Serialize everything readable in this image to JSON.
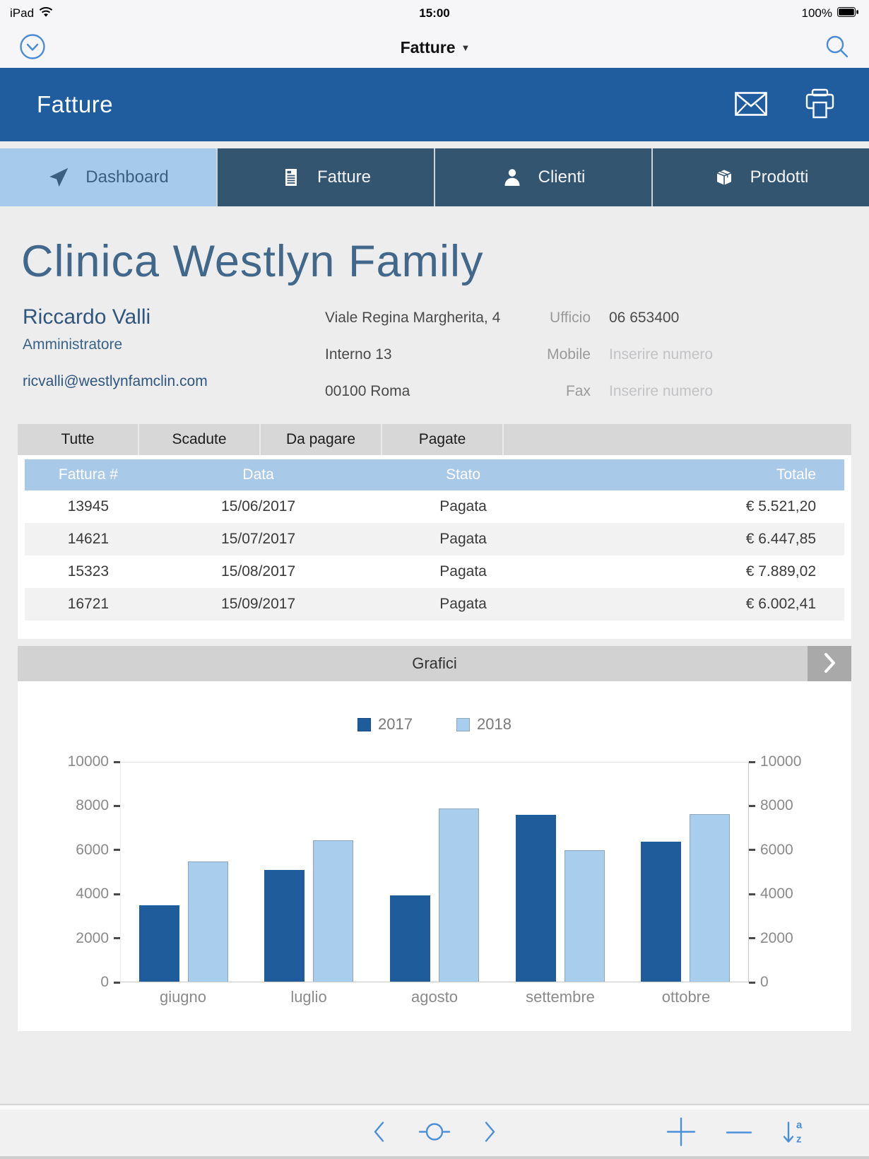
{
  "status_bar": {
    "carrier": "iPad",
    "time": "15:00",
    "battery_percent": "100%"
  },
  "nav_bar": {
    "title": "Fatture",
    "left_icon": "circle-chevron-down-icon",
    "right_icon": "search-icon"
  },
  "header": {
    "title": "Fatture",
    "icons": [
      "mail-icon",
      "print-icon"
    ]
  },
  "tabs": [
    {
      "id": "dashboard",
      "label": "Dashboard",
      "icon": "navigation-arrow-icon",
      "active": true
    },
    {
      "id": "fatture",
      "label": "Fatture",
      "icon": "invoice-icon",
      "active": false
    },
    {
      "id": "clienti",
      "label": "Clienti",
      "icon": "person-icon",
      "active": false
    },
    {
      "id": "prodotti",
      "label": "Prodotti",
      "icon": "box-icon",
      "active": false
    }
  ],
  "client": {
    "company": "Clinica Westlyn Family",
    "contact_name": "Riccardo Valli",
    "role": "Amministratore",
    "email": "ricvalli@westlynfamclin.com",
    "address_line1": "Viale Regina Margherita, 4",
    "address_line2": "Interno 13",
    "address_line3": "00100 Roma",
    "phones": [
      {
        "label": "Ufficio",
        "value": "06 653400",
        "placeholder": false
      },
      {
        "label": "Mobile",
        "value": "Inserire numero",
        "placeholder": true
      },
      {
        "label": "Fax",
        "value": "Inserire numero",
        "placeholder": true
      }
    ]
  },
  "filters": [
    "Tutte",
    "Scadute",
    "Da pagare",
    "Pagate"
  ],
  "invoice_table": {
    "columns": [
      "Fattura #",
      "Data",
      "Stato",
      "Totale"
    ],
    "rows": [
      [
        "13945",
        "15/06/2017",
        "Pagata",
        "€ 5.521,20"
      ],
      [
        "14621",
        "15/07/2017",
        "Pagata",
        "€ 6.447,85"
      ],
      [
        "15323",
        "15/08/2017",
        "Pagata",
        "€ 7.889,02"
      ],
      [
        "16721",
        "15/09/2017",
        "Pagata",
        "€ 6.002,41"
      ]
    ]
  },
  "charts_section": {
    "title": "Grafici"
  },
  "chart_data": {
    "type": "bar",
    "categories": [
      "giugno",
      "luglio",
      "agosto",
      "settembre",
      "ottobre"
    ],
    "series": [
      {
        "name": "2017",
        "color": "#1e5c9c",
        "values": [
          3500,
          5100,
          3950,
          7600,
          6400
        ]
      },
      {
        "name": "2018",
        "color": "#a9cdec",
        "values": [
          5500,
          6450,
          7900,
          6000,
          7650
        ]
      }
    ],
    "title": "",
    "xlabel": "",
    "ylabel": "",
    "ylim": [
      0,
      10000
    ],
    "yticks": [
      0,
      2000,
      4000,
      6000,
      8000,
      10000
    ],
    "legend_position": "top",
    "dual_y_axis": true,
    "grid": "top-line-only"
  },
  "toolbar": {
    "icons": [
      "chevron-left-icon",
      "record-circle-icon",
      "chevron-right-icon",
      "plus-icon",
      "minus-icon",
      "sort-az-icon"
    ]
  },
  "colors": {
    "header_blue": "#1f5d9e",
    "tab_active_bg": "#a6caec",
    "tab_active_fg": "#3a5f80",
    "tab_inactive_bg": "#34556f",
    "table_header_bg": "#a9c9e9",
    "icon_blue": "#4a8fd9",
    "series_2017": "#1e5c9c",
    "series_2018": "#a9cdec"
  }
}
